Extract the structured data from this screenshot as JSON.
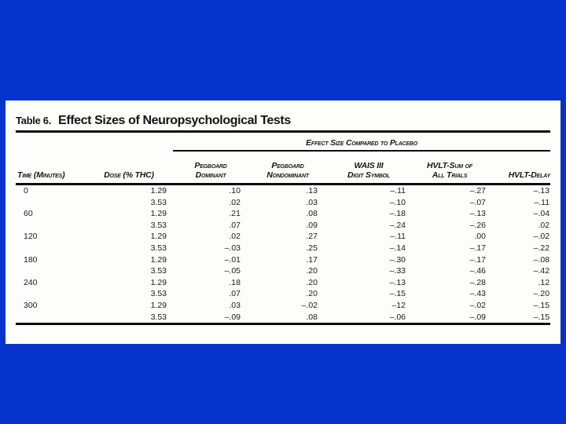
{
  "page": {
    "background_color": "#0533cb",
    "panel_color": "#fdfdfc",
    "rule_color": "#0b0b0b"
  },
  "table": {
    "label": "Table 6.",
    "title": "Effect Sizes of Neuropsychological Tests",
    "span_header": "Effect Size Compared to Placebo",
    "columns": [
      {
        "label": "Time (Minutes)",
        "lines": [
          "Time (Minutes)"
        ]
      },
      {
        "label": "Dose (% THC)",
        "lines": [
          "Dose (% THC)"
        ]
      },
      {
        "label": "Pegboard Dominant",
        "lines": [
          "Pegboard",
          "Dominant"
        ]
      },
      {
        "label": "Pegboard Nondominant",
        "lines": [
          "Pegboard",
          "Nondominant"
        ]
      },
      {
        "label": "WAIS III Digit Symbol",
        "lines": [
          "WAIS III",
          "Digit Symbol"
        ]
      },
      {
        "label": "HVLT-Sum of All Trials",
        "lines": [
          "HVLT-Sum of",
          "All Trials"
        ]
      },
      {
        "label": "HVLT-Delay",
        "lines": [
          "HVLT-Delay"
        ]
      }
    ],
    "rows": [
      {
        "time": "0",
        "dose": "1.29",
        "values": [
          ".10",
          ".13",
          "–.11",
          "–.27",
          "–.13"
        ]
      },
      {
        "time": "",
        "dose": "3.53",
        "values": [
          ".02",
          ".03",
          "–.10",
          "–.07",
          "–.11"
        ]
      },
      {
        "time": "60",
        "dose": "1.29",
        "values": [
          ".21",
          ".08",
          "–.18",
          "–.13",
          "–.04"
        ]
      },
      {
        "time": "",
        "dose": "3.53",
        "values": [
          ".07",
          ".09",
          "–.24",
          "–.26",
          ".02"
        ]
      },
      {
        "time": "120",
        "dose": "1.29",
        "values": [
          ".02",
          ".27",
          "–.11",
          ".00",
          "–.02"
        ]
      },
      {
        "time": "",
        "dose": "3.53",
        "values": [
          "–.03",
          ".25",
          "–.14",
          "–.17",
          "–.22"
        ]
      },
      {
        "time": "180",
        "dose": "1.29",
        "values": [
          "–.01",
          ".17",
          "–.30",
          "–.17",
          "–.08"
        ]
      },
      {
        "time": "",
        "dose": "3.53",
        "values": [
          "–.05",
          ".20",
          "–.33",
          "–.46",
          "–.42"
        ]
      },
      {
        "time": "240",
        "dose": "1.29",
        "values": [
          ".18",
          ".20",
          "–.13",
          "–.28",
          ".12"
        ]
      },
      {
        "time": "",
        "dose": "3.53",
        "values": [
          ".07",
          ".20",
          "–.15",
          "–.43",
          "–.20"
        ]
      },
      {
        "time": "300",
        "dose": "1.29",
        "values": [
          ".03",
          "–.02",
          "–12",
          "–.02",
          "–.15"
        ]
      },
      {
        "time": "",
        "dose": "3.53",
        "values": [
          "–.09",
          ".08",
          "–.06",
          "–.09",
          "–.15"
        ]
      }
    ]
  }
}
